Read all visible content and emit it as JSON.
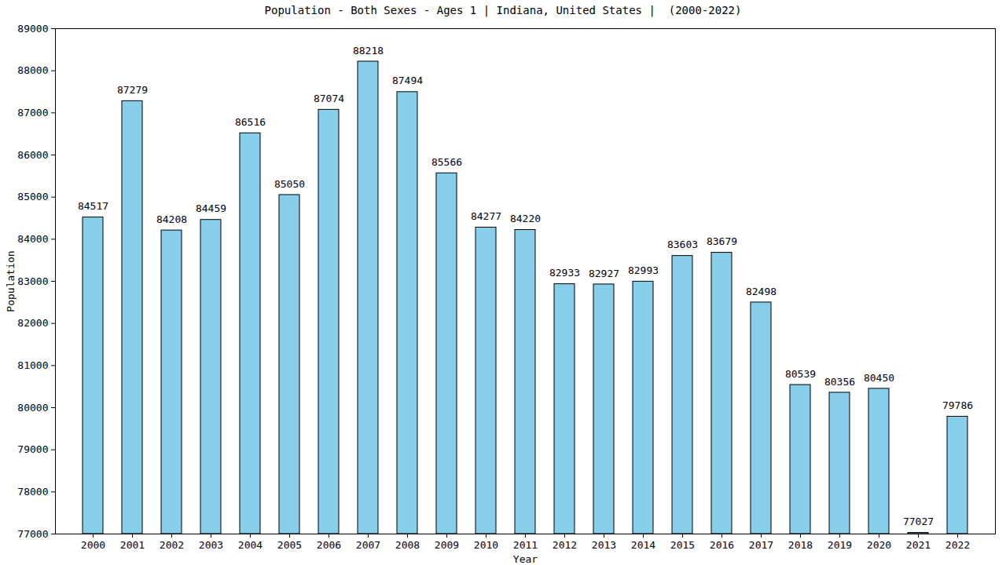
{
  "chart_data": {
    "type": "bar",
    "title": "Population - Both Sexes - Ages 1 | Indiana, United States |  (2000-2022)",
    "x_label": "Year",
    "y_label": "Population",
    "categories": [
      "2000",
      "2001",
      "2002",
      "2003",
      "2004",
      "2005",
      "2006",
      "2007",
      "2008",
      "2009",
      "2010",
      "2011",
      "2012",
      "2013",
      "2014",
      "2015",
      "2016",
      "2017",
      "2018",
      "2019",
      "2020",
      "2021",
      "2022"
    ],
    "values": [
      84517,
      87279,
      84208,
      84459,
      86516,
      85050,
      87074,
      88218,
      87494,
      85566,
      84277,
      84220,
      82933,
      82927,
      82993,
      83603,
      83679,
      82498,
      80539,
      80356,
      80450,
      77027,
      79786
    ],
    "color": "#87ceeb",
    "ylim": [
      77000,
      89000
    ],
    "yticks": [
      77000,
      78000,
      79000,
      80000,
      81000,
      82000,
      83000,
      84000,
      85000,
      86000,
      87000,
      88000,
      89000
    ],
    "grid": false,
    "data_labels": true
  }
}
